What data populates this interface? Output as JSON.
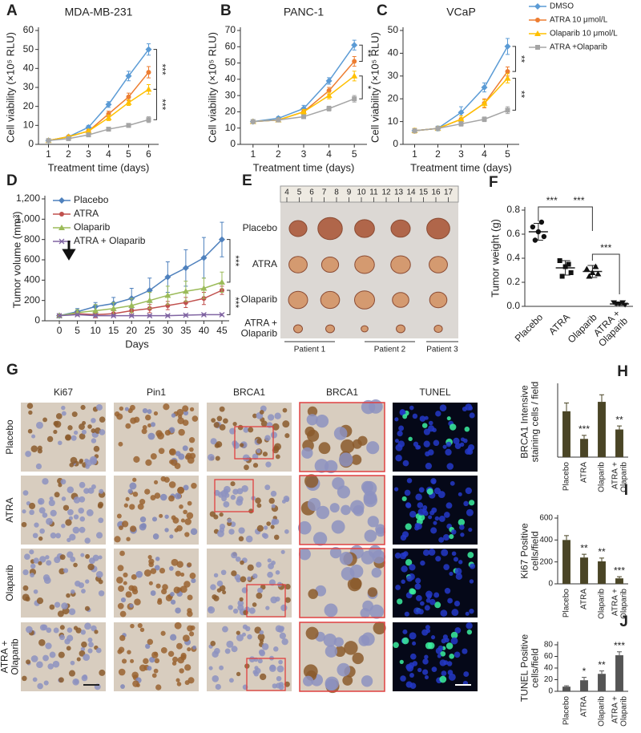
{
  "chart_data": [
    {
      "panel": "A",
      "type": "line",
      "title": "MDA-MB-231",
      "x_label": "Treatment time (days)",
      "y_label": "Cell viability (×10⁵ RLU)",
      "x": [
        1,
        2,
        3,
        4,
        5,
        6
      ],
      "xlim": [
        0.5,
        6.5
      ],
      "xticks": [
        1,
        2,
        3,
        4,
        5,
        6
      ],
      "ylim": [
        0,
        60
      ],
      "yticks": [
        0,
        10,
        20,
        30,
        40,
        50,
        60
      ],
      "series": [
        {
          "color": "#5b9bd5",
          "marker": "diamond",
          "values": [
            2,
            4,
            9,
            21,
            36,
            50
          ],
          "errors": [
            0.5,
            0.7,
            1,
            1.5,
            2.5,
            3
          ]
        },
        {
          "color": "#ed7d31",
          "marker": "circle",
          "values": [
            2,
            4,
            7,
            16,
            25,
            38
          ],
          "errors": [
            0.5,
            0.5,
            1,
            1.5,
            2,
            3
          ]
        },
        {
          "color": "#ffc000",
          "marker": "triangle",
          "values": [
            2,
            4,
            7,
            14,
            22,
            29
          ],
          "errors": [
            0.5,
            0.5,
            1,
            1.5,
            1.5,
            2.5
          ]
        },
        {
          "color": "#a5a5a5",
          "marker": "square",
          "values": [
            2,
            3,
            5,
            8,
            10,
            13
          ],
          "errors": [
            0.3,
            0.3,
            0.5,
            0.8,
            1,
            1.5
          ]
        }
      ],
      "significance": [
        "***",
        "***"
      ]
    },
    {
      "panel": "B",
      "type": "line",
      "title": "PANC-1",
      "x_label": "Treatment time (days)",
      "y_label": "Cell viability (×10⁵ RLU)",
      "x": [
        1,
        2,
        3,
        4,
        5
      ],
      "xlim": [
        0.5,
        5.5
      ],
      "xticks": [
        1,
        2,
        3,
        4,
        5
      ],
      "ylim": [
        0,
        70
      ],
      "yticks": [
        0,
        10,
        20,
        30,
        40,
        50,
        60,
        70
      ],
      "series": [
        {
          "color": "#5b9bd5",
          "marker": "diamond",
          "values": [
            14,
            16,
            22,
            39,
            61
          ],
          "errors": [
            1,
            1,
            2,
            2,
            3
          ]
        },
        {
          "color": "#ed7d31",
          "marker": "circle",
          "values": [
            14,
            15,
            20,
            33,
            51
          ],
          "errors": [
            1,
            1,
            1.5,
            2,
            3
          ]
        },
        {
          "color": "#ffc000",
          "marker": "triangle",
          "values": [
            14,
            15,
            20,
            30,
            42
          ],
          "errors": [
            1,
            1,
            1.5,
            2,
            3
          ]
        },
        {
          "color": "#a5a5a5",
          "marker": "square",
          "values": [
            14,
            15,
            17,
            22,
            28
          ],
          "errors": [
            1,
            1,
            1,
            1.5,
            2
          ]
        }
      ],
      "significance": [
        "**",
        "*"
      ]
    },
    {
      "panel": "C",
      "type": "line",
      "title": "VCaP",
      "x_label": "Treatment time (days)",
      "y_label": "Cell viability (×10⁵ RLU)",
      "x": [
        1,
        2,
        3,
        4,
        5
      ],
      "xlim": [
        0.5,
        5.5
      ],
      "xticks": [
        1,
        2,
        3,
        4,
        5
      ],
      "ylim": [
        0,
        50
      ],
      "yticks": [
        0,
        10,
        20,
        30,
        40,
        50
      ],
      "legend": "outside right",
      "series": [
        {
          "name": "DMSO",
          "color": "#5b9bd5",
          "marker": "diamond",
          "values": [
            6,
            7,
            14,
            25,
            43
          ],
          "errors": [
            1,
            1,
            2.5,
            2,
            3.5
          ]
        },
        {
          "name": "ATRA 10 μmol/L",
          "color": "#ed7d31",
          "marker": "circle",
          "values": [
            6,
            7,
            11,
            18,
            32
          ],
          "errors": [
            1,
            0.5,
            1.5,
            2,
            2
          ]
        },
        {
          "name": "Olaparib 10 μmol/L",
          "color": "#ffc000",
          "marker": "triangle",
          "values": [
            6,
            7,
            11,
            18,
            29
          ],
          "errors": [
            1,
            0.5,
            1.5,
            1.5,
            2
          ]
        },
        {
          "name": "ATRA +Olaparib",
          "color": "#a5a5a5",
          "marker": "square",
          "values": [
            6,
            7,
            9,
            11,
            15
          ],
          "errors": [
            0.5,
            0.5,
            1,
            1,
            1.5
          ]
        }
      ],
      "significance": [
        "**",
        "**"
      ]
    },
    {
      "panel": "D",
      "type": "line",
      "x_label": "Days",
      "y_label": "Tumor volume (mm³)",
      "x": [
        0,
        5,
        10,
        15,
        20,
        25,
        30,
        35,
        40,
        45
      ],
      "xlim": [
        -4,
        47
      ],
      "xticks": [
        0,
        5,
        10,
        15,
        20,
        25,
        30,
        35,
        40,
        45
      ],
      "ylim": [
        0,
        1200
      ],
      "yticks": [
        0,
        200,
        400,
        600,
        800,
        {
          "value": 1000,
          "label": "1,000"
        },
        {
          "value": 1200,
          "label": "1,200"
        }
      ],
      "legend": "upper left",
      "series": [
        {
          "name": "Placebo",
          "color": "#4f81bd",
          "marker": "diamond",
          "values": [
            50,
            90,
            140,
            170,
            220,
            300,
            430,
            520,
            620,
            800
          ],
          "errors": [
            10,
            30,
            40,
            60,
            100,
            120,
            150,
            180,
            200,
            170
          ]
        },
        {
          "name": "ATRA",
          "color": "#c0504d",
          "marker": "circle",
          "values": [
            50,
            70,
            60,
            70,
            100,
            120,
            150,
            180,
            220,
            300
          ],
          "errors": [
            10,
            20,
            30,
            30,
            40,
            40,
            40,
            50,
            60,
            40
          ]
        },
        {
          "name": "Olaparib",
          "color": "#9bbb59",
          "marker": "triangle",
          "values": [
            50,
            80,
            100,
            120,
            150,
            200,
            250,
            290,
            320,
            380
          ],
          "errors": [
            10,
            30,
            60,
            60,
            70,
            80,
            90,
            100,
            100,
            100
          ]
        },
        {
          "name": "ATRA + Olaparib",
          "color": "#8064a2",
          "marker": "x",
          "values": [
            50,
            60,
            50,
            50,
            50,
            50,
            50,
            55,
            60,
            60
          ],
          "errors": [
            10,
            10,
            10,
            10,
            10,
            10,
            10,
            10,
            10,
            10
          ]
        }
      ],
      "significance": [
        "***",
        "***"
      ]
    },
    {
      "panel": "F",
      "type": "strip",
      "y_label": "Tumor weight (g)",
      "categories": [
        "Placebo",
        "ATRA",
        "Olaparib",
        "ATRA +\nOlaparib"
      ],
      "ylim": [
        0,
        0.8
      ],
      "yticks": [
        {
          "value": 0,
          "label": "0.0"
        },
        0.2,
        0.4,
        0.6,
        0.8
      ],
      "points": [
        [
          0.66,
          0.62,
          0.58,
          0.55,
          0.7
        ],
        [
          0.38,
          0.33,
          0.28,
          0.25,
          0.35
        ],
        [
          0.31,
          0.28,
          0.27,
          0.25,
          0.33
        ],
        [
          0.03,
          0.02,
          0.01,
          0.02,
          0.03
        ]
      ],
      "means": [
        0.62,
        0.32,
        0.29,
        0.02
      ],
      "errors": [
        0.07,
        0.06,
        0.05,
        0.01
      ],
      "significance": [
        "***",
        "***",
        "***"
      ]
    },
    {
      "panel": "H",
      "type": "bar",
      "y_label": "BRCA1 Intensive\nstaining cells / field",
      "categories": [
        "Placebo",
        "ATRA",
        "Olaparib",
        "ATRA +\nOlaparib"
      ],
      "color": "#4a4526",
      "ylim": [
        0,
        600
      ],
      "values": [
        390,
        155,
        470,
        235
      ],
      "errors": [
        70,
        30,
        60,
        30
      ],
      "significance": [
        null,
        "***",
        null,
        "**"
      ]
    },
    {
      "panel": "I",
      "type": "bar",
      "y_label": "Ki67 Positive\ncells/field",
      "categories": [
        "Placebo",
        "ATRA",
        "Olaparib",
        "ATRA +\nOlaparib"
      ],
      "color": "#4a4526",
      "ylim": [
        0,
        600
      ],
      "yticks": [
        0,
        200,
        400,
        600
      ],
      "values": [
        400,
        240,
        205,
        50
      ],
      "errors": [
        40,
        30,
        30,
        15
      ],
      "significance": [
        null,
        "**",
        "**",
        "***"
      ]
    },
    {
      "panel": "J",
      "type": "bar",
      "y_label": "TUNEL Positive\ncells/field",
      "categories": [
        "Placebo",
        "ATRA",
        "Olaparib",
        "ATRA +\nOlaparib"
      ],
      "color": "#555555",
      "ylim": [
        0,
        80
      ],
      "yticks": [
        0,
        20,
        40,
        60,
        80
      ],
      "values": [
        8,
        19,
        30,
        62
      ],
      "errors": [
        1.5,
        5,
        5,
        6
      ],
      "significance": [
        null,
        "*",
        "**",
        "***"
      ]
    }
  ],
  "photo": {
    "panel": "E",
    "ruler": [
      4,
      5,
      6,
      7,
      8,
      9,
      10,
      11,
      12,
      13,
      14,
      15,
      16,
      17
    ],
    "rows": [
      "Placebo",
      "ATRA",
      "Olaparib",
      "ATRA +\nOlaparib"
    ],
    "patients": [
      "Patient 1",
      "Patient 2",
      "Patient 3"
    ]
  },
  "staining": {
    "panel": "G",
    "columns": [
      "Ki67",
      "Pin1",
      "BRCA1",
      "BRCA1",
      "TUNEL"
    ],
    "rows": [
      "Placebo",
      "ATRA",
      "Olaparib",
      "ATRA +\nOlaparib"
    ]
  }
}
